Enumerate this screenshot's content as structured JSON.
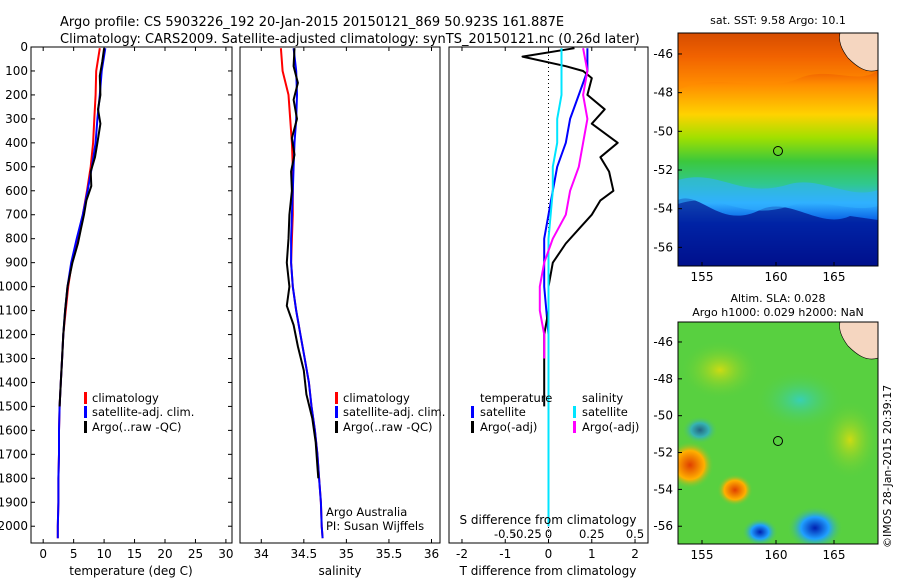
{
  "header": {
    "line1": "Argo profile: CS 5903226_192 20-Jan-2015 20150121_869 50.923S 161.887E",
    "line2": "Climatology: CARS2009. Satellite-adjusted climatology: synTS_20150121.nc (0.26d later)"
  },
  "colors": {
    "clim": "#ff0000",
    "sat": "#0000ff",
    "argo": "#000000",
    "sal_sat": "#00e5ff",
    "sal_argo": "#ff00ff"
  },
  "chart_data": [
    {
      "id": "temperature",
      "type": "line",
      "xlabel": "temperature (deg C)",
      "ylabel": "",
      "xlim": [
        -2,
        31
      ],
      "ylim": [
        0,
        2070
      ],
      "y_inverted": true,
      "xticks": [
        0,
        5,
        10,
        15,
        20,
        25,
        30
      ],
      "yticks": [
        0,
        100,
        200,
        300,
        400,
        500,
        600,
        700,
        800,
        900,
        1000,
        1100,
        1200,
        1300,
        1400,
        1500,
        1600,
        1700,
        1800,
        1900,
        2000
      ],
      "legend": [
        "climatology",
        "satellite-adj. clim.",
        "Argo(..raw -QC)"
      ],
      "series": [
        {
          "name": "climatology",
          "color": "#ff0000",
          "pressure": [
            5,
            100,
            200,
            300,
            400,
            500,
            600,
            700,
            800,
            900,
            1000,
            1100,
            1200,
            1300,
            1400,
            1500,
            1600,
            1700,
            1800,
            1900,
            2000,
            2050
          ],
          "values": [
            9.3,
            8.7,
            8.6,
            8.4,
            8.2,
            7.8,
            7.2,
            6.5,
            5.6,
            4.7,
            4.1,
            3.7,
            3.3,
            3.1,
            2.9,
            2.7,
            2.6,
            2.6,
            2.5,
            2.5,
            2.4,
            2.4
          ]
        },
        {
          "name": "satellite-adj. clim.",
          "color": "#0000ff",
          "pressure": [
            5,
            100,
            200,
            300,
            400,
            500,
            600,
            700,
            800,
            900,
            1000,
            1100,
            1200,
            1300,
            1400,
            1500,
            1600,
            1700,
            1800,
            1900,
            2000,
            2050
          ],
          "values": [
            10.2,
            9.6,
            9.3,
            8.9,
            8.6,
            8.0,
            7.3,
            6.5,
            5.5,
            4.6,
            4.0,
            3.6,
            3.3,
            3.1,
            2.9,
            2.7,
            2.6,
            2.6,
            2.5,
            2.5,
            2.4,
            2.4
          ]
        },
        {
          "name": "Argo(..raw -QC)",
          "color": "#000000",
          "pressure": [
            5,
            60,
            120,
            200,
            260,
            320,
            400,
            460,
            520,
            580,
            640,
            700,
            760,
            820,
            900,
            1000,
            1100,
            1200,
            1300,
            1400,
            1500
          ],
          "values": [
            10.0,
            9.7,
            9.3,
            9.4,
            9.0,
            9.4,
            8.9,
            8.5,
            7.8,
            7.9,
            7.1,
            6.7,
            6.2,
            5.7,
            4.8,
            4.0,
            3.6,
            3.3,
            3.1,
            2.9,
            2.7
          ]
        }
      ]
    },
    {
      "id": "salinity",
      "type": "line",
      "xlabel": "salinity",
      "xlim": [
        33.75,
        36.1
      ],
      "ylim": [
        0,
        2070
      ],
      "y_inverted": true,
      "xticks": [
        34,
        34.5,
        35,
        35.5,
        36
      ],
      "xticklabels": [
        "34",
        "34.5",
        "35",
        "35.5",
        "36"
      ],
      "legend": [
        "climatology",
        "satellite-adj. clim.",
        "Argo(..raw -QC)"
      ],
      "annotation": [
        "Argo Australia",
        "PI: Susan Wijffels"
      ],
      "series": [
        {
          "name": "climatology",
          "color": "#ff0000",
          "pressure": [
            5,
            100,
            200,
            300,
            400,
            500,
            600,
            700,
            800,
            900,
            1000,
            1100,
            1200,
            1300,
            1400,
            1500,
            1600,
            1700,
            1800,
            1900,
            2000,
            2050
          ],
          "values": [
            34.23,
            34.25,
            34.32,
            34.34,
            34.36,
            34.37,
            34.37,
            34.37,
            34.36,
            34.35,
            34.37,
            34.41,
            34.46,
            34.51,
            34.56,
            34.59,
            34.63,
            34.66,
            34.68,
            34.7,
            34.71,
            34.72
          ]
        },
        {
          "name": "satellite-adj. clim.",
          "color": "#0000ff",
          "pressure": [
            5,
            100,
            200,
            300,
            400,
            500,
            600,
            700,
            800,
            900,
            1000,
            1100,
            1200,
            1300,
            1400,
            1500,
            1600,
            1700,
            1800,
            1900,
            2000,
            2050
          ],
          "values": [
            34.38,
            34.41,
            34.42,
            34.41,
            34.39,
            34.38,
            34.37,
            34.36,
            34.35,
            34.35,
            34.37,
            34.41,
            34.46,
            34.51,
            34.56,
            34.59,
            34.63,
            34.66,
            34.68,
            34.7,
            34.71,
            34.72
          ]
        },
        {
          "name": "Argo(..raw -QC)",
          "color": "#000000",
          "pressure": [
            5,
            80,
            150,
            220,
            300,
            380,
            450,
            520,
            600,
            700,
            800,
            900,
            1000,
            1080,
            1160,
            1250,
            1350,
            1450,
            1550,
            1650,
            1750,
            1800
          ],
          "values": [
            34.39,
            34.38,
            34.43,
            34.38,
            34.42,
            34.36,
            34.39,
            34.35,
            34.36,
            34.33,
            34.32,
            34.3,
            34.33,
            34.3,
            34.38,
            34.43,
            34.5,
            34.53,
            34.6,
            34.64,
            34.66,
            34.67
          ]
        }
      ]
    },
    {
      "id": "difference",
      "type": "line",
      "xlabel": "T difference from climatology",
      "xlabel_top": "S difference from climatology",
      "xlim": [
        -2.3,
        2.3
      ],
      "ylim": [
        0,
        2070
      ],
      "y_inverted": true,
      "xticks": [
        -2,
        -1,
        0,
        1,
        2
      ],
      "xticklabels": [
        "-2",
        "-1",
        "0",
        "1",
        "2"
      ],
      "sticks": [
        -1.0,
        -0.5,
        0,
        1.0,
        2.0
      ],
      "sticklabels": [
        "-0.5",
        "-0.25",
        "0",
        "0.25",
        "0.5"
      ],
      "legend": {
        "temperature": {
          "title": "temperature",
          "items": [
            "satellite",
            "Argo(-adj)"
          ]
        },
        "salinity": {
          "title": "salinity",
          "items": [
            "satellite",
            "Argo(-adj)"
          ]
        }
      },
      "series": [
        {
          "name": "temperature satellite",
          "color": "#0000ff",
          "pressure": [
            5,
            100,
            200,
            300,
            400,
            500,
            600,
            700,
            800,
            900,
            1000,
            1200,
            1400,
            1600,
            1800,
            2000
          ],
          "values": [
            0.9,
            0.9,
            0.7,
            0.5,
            0.4,
            0.2,
            0.1,
            0.0,
            -0.1,
            -0.1,
            -0.1,
            0.0,
            0.0,
            0.0,
            0.0,
            0.0
          ]
        },
        {
          "name": "temperature Argo(-adj)",
          "color": "#000000",
          "pressure": [
            5,
            40,
            80,
            100,
            130,
            200,
            260,
            320,
            400,
            460,
            520,
            600,
            640,
            700,
            760,
            820,
            900,
            1000,
            1100,
            1200,
            1400,
            1500
          ],
          "values": [
            0.6,
            -0.6,
            0.4,
            0.8,
            1.0,
            0.9,
            1.3,
            1.0,
            1.6,
            1.2,
            1.4,
            1.5,
            1.2,
            1.0,
            0.7,
            0.4,
            0.1,
            0.0,
            0.0,
            -0.1,
            -0.1,
            -0.1
          ]
        },
        {
          "name": "salinity satellite",
          "color": "#00e5ff",
          "pressure": [
            5,
            100,
            200,
            300,
            400,
            500,
            600,
            800,
            1000,
            1200,
            1400,
            1600,
            1800,
            2000
          ],
          "values": [
            0.3,
            0.3,
            0.3,
            0.2,
            0.2,
            0.1,
            0.1,
            0.0,
            0.0,
            0.0,
            0.0,
            0.0,
            0.0,
            0.0
          ]
        },
        {
          "name": "salinity Argo(-adj)",
          "color": "#ff00ff",
          "pressure": [
            5,
            100,
            200,
            300,
            400,
            500,
            600,
            700,
            800,
            900,
            1000,
            1100,
            1200,
            1300
          ],
          "values": [
            0.8,
            0.9,
            0.8,
            0.9,
            0.8,
            0.7,
            0.5,
            0.4,
            0.1,
            -0.1,
            -0.2,
            -0.2,
            -0.1,
            -0.1
          ]
        }
      ]
    }
  ],
  "maps": {
    "sst": {
      "title": "sat. SST: 9.58 Argo: 10.1",
      "xticks": [
        "155",
        "160",
        "165"
      ],
      "yticks": [
        "-46",
        "-48",
        "-50",
        "-52",
        "-54",
        "-56"
      ]
    },
    "sla": {
      "title1": "Altim. SLA: 0.028",
      "title2": "Argo h1000: 0.029 h2000: NaN",
      "xticks": [
        "155",
        "160",
        "165"
      ],
      "yticks": [
        "-46",
        "-48",
        "-50",
        "-52",
        "-54",
        "-56"
      ]
    },
    "stamp": "©IMOS 28-Jan-2015 20:39:17"
  }
}
